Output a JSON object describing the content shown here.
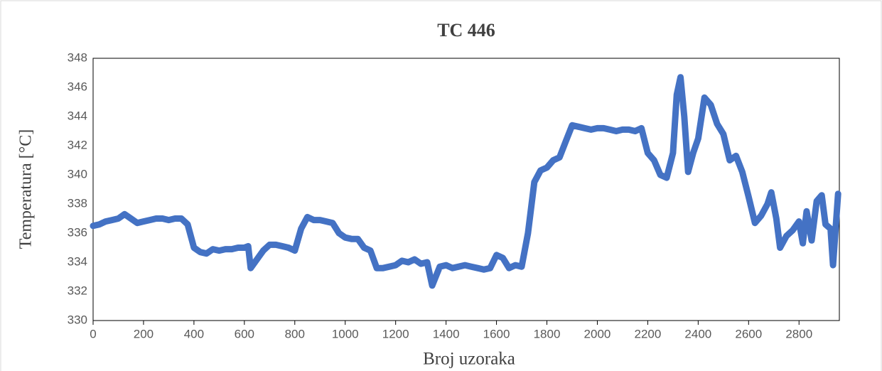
{
  "chart_data": {
    "type": "line",
    "title": "TC 446",
    "x_label": "Broj uzoraka",
    "y_label": "Temperatura [°C]",
    "x": [
      0,
      25,
      50,
      75,
      100,
      125,
      150,
      175,
      200,
      225,
      250,
      275,
      300,
      325,
      350,
      375,
      400,
      425,
      450,
      475,
      500,
      525,
      550,
      575,
      600,
      615,
      625,
      650,
      675,
      700,
      725,
      750,
      775,
      800,
      825,
      850,
      875,
      900,
      925,
      950,
      975,
      1000,
      1025,
      1050,
      1075,
      1100,
      1125,
      1150,
      1175,
      1200,
      1225,
      1250,
      1275,
      1300,
      1325,
      1345,
      1375,
      1400,
      1425,
      1450,
      1475,
      1500,
      1525,
      1550,
      1575,
      1600,
      1625,
      1650,
      1675,
      1700,
      1725,
      1750,
      1775,
      1800,
      1825,
      1850,
      1875,
      1900,
      1925,
      1950,
      1975,
      2000,
      2025,
      2050,
      2075,
      2100,
      2125,
      2150,
      2175,
      2200,
      2225,
      2250,
      2275,
      2300,
      2315,
      2330,
      2345,
      2360,
      2380,
      2400,
      2425,
      2450,
      2475,
      2500,
      2525,
      2550,
      2575,
      2600,
      2625,
      2650,
      2675,
      2690,
      2710,
      2725,
      2750,
      2775,
      2800,
      2815,
      2830,
      2850,
      2870,
      2890,
      2905,
      2925,
      2935,
      2955
    ],
    "series": [
      {
        "name": "TC 446",
        "color": "#4472c4",
        "values": [
          336.5,
          336.6,
          336.8,
          336.9,
          337.0,
          337.3,
          337.0,
          336.7,
          336.8,
          336.9,
          337.0,
          337.0,
          336.9,
          337.0,
          337.0,
          336.6,
          335.0,
          334.7,
          334.6,
          334.9,
          334.8,
          334.9,
          334.9,
          335.0,
          335.0,
          335.1,
          333.6,
          334.2,
          334.8,
          335.2,
          335.2,
          335.1,
          335.0,
          334.8,
          336.3,
          337.1,
          336.9,
          336.9,
          336.8,
          336.7,
          336.0,
          335.7,
          335.6,
          335.6,
          335.0,
          334.8,
          333.6,
          333.6,
          333.7,
          333.8,
          334.1,
          334.0,
          334.2,
          333.9,
          334.0,
          332.4,
          333.7,
          333.8,
          333.6,
          333.7,
          333.8,
          333.7,
          333.6,
          333.5,
          333.6,
          334.5,
          334.3,
          333.6,
          333.8,
          333.7,
          336.0,
          339.5,
          340.3,
          340.5,
          341.0,
          341.2,
          342.3,
          343.4,
          343.3,
          343.2,
          343.1,
          343.2,
          343.2,
          343.1,
          343.0,
          343.1,
          343.1,
          343.0,
          343.2,
          341.5,
          341.0,
          340.0,
          339.8,
          341.5,
          345.5,
          346.7,
          344.0,
          340.2,
          341.5,
          342.5,
          345.3,
          344.8,
          343.5,
          342.8,
          341.0,
          341.3,
          340.2,
          338.5,
          336.7,
          337.2,
          338.0,
          338.8,
          337.0,
          335.0,
          335.8,
          336.2,
          336.8,
          335.3,
          337.5,
          335.5,
          338.2,
          338.6,
          336.6,
          336.3,
          333.8,
          338.7
        ]
      }
    ],
    "xlim": [
      0,
      2960
    ],
    "ylim": [
      330,
      348
    ],
    "xticks": [
      0,
      200,
      400,
      600,
      800,
      1000,
      1200,
      1400,
      1600,
      1800,
      2000,
      2200,
      2400,
      2600,
      2800
    ],
    "yticks": [
      330,
      332,
      334,
      336,
      338,
      340,
      342,
      344,
      346,
      348
    ],
    "grid": false
  }
}
